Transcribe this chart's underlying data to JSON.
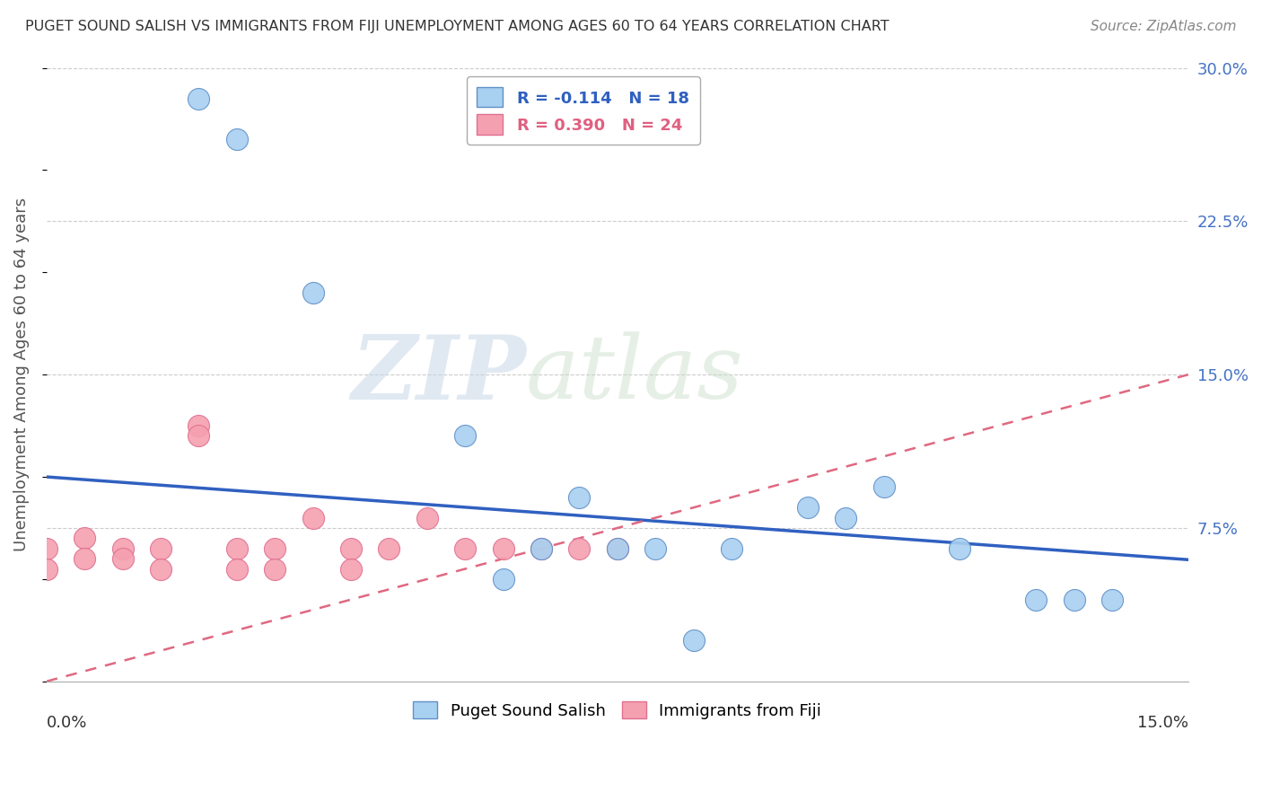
{
  "title": "PUGET SOUND SALISH VS IMMIGRANTS FROM FIJI UNEMPLOYMENT AMONG AGES 60 TO 64 YEARS CORRELATION CHART",
  "source": "Source: ZipAtlas.com",
  "ylabel": "Unemployment Among Ages 60 to 64 years",
  "xlim": [
    0.0,
    0.15
  ],
  "ylim": [
    0.0,
    0.3
  ],
  "yticks": [
    0.075,
    0.15,
    0.225,
    0.3
  ],
  "ytick_labels": [
    "7.5%",
    "15.0%",
    "22.5%",
    "30.0%"
  ],
  "blue_color": "#a8d0f0",
  "pink_color": "#f5a0b0",
  "blue_line_color": "#3060c0",
  "pink_line_color": "#e06880",
  "watermark": "ZIPatlas",
  "puget_x": [
    0.02,
    0.025,
    0.035,
    0.055,
    0.06,
    0.065,
    0.07,
    0.075,
    0.08,
    0.085,
    0.09,
    0.1,
    0.105,
    0.11,
    0.12,
    0.13,
    0.135,
    0.14
  ],
  "puget_y": [
    0.285,
    0.265,
    0.19,
    0.12,
    0.05,
    0.065,
    0.09,
    0.065,
    0.065,
    0.02,
    0.065,
    0.085,
    0.08,
    0.095,
    0.065,
    0.04,
    0.04,
    0.04
  ],
  "fiji_x": [
    0.0,
    0.0,
    0.005,
    0.005,
    0.01,
    0.01,
    0.015,
    0.015,
    0.02,
    0.02,
    0.025,
    0.025,
    0.03,
    0.03,
    0.035,
    0.04,
    0.04,
    0.045,
    0.05,
    0.055,
    0.06,
    0.065,
    0.07,
    0.075
  ],
  "fiji_y": [
    0.065,
    0.055,
    0.07,
    0.06,
    0.065,
    0.06,
    0.065,
    0.055,
    0.125,
    0.12,
    0.065,
    0.055,
    0.065,
    0.055,
    0.08,
    0.065,
    0.055,
    0.065,
    0.08,
    0.065,
    0.065,
    0.065,
    0.065,
    0.065
  ]
}
